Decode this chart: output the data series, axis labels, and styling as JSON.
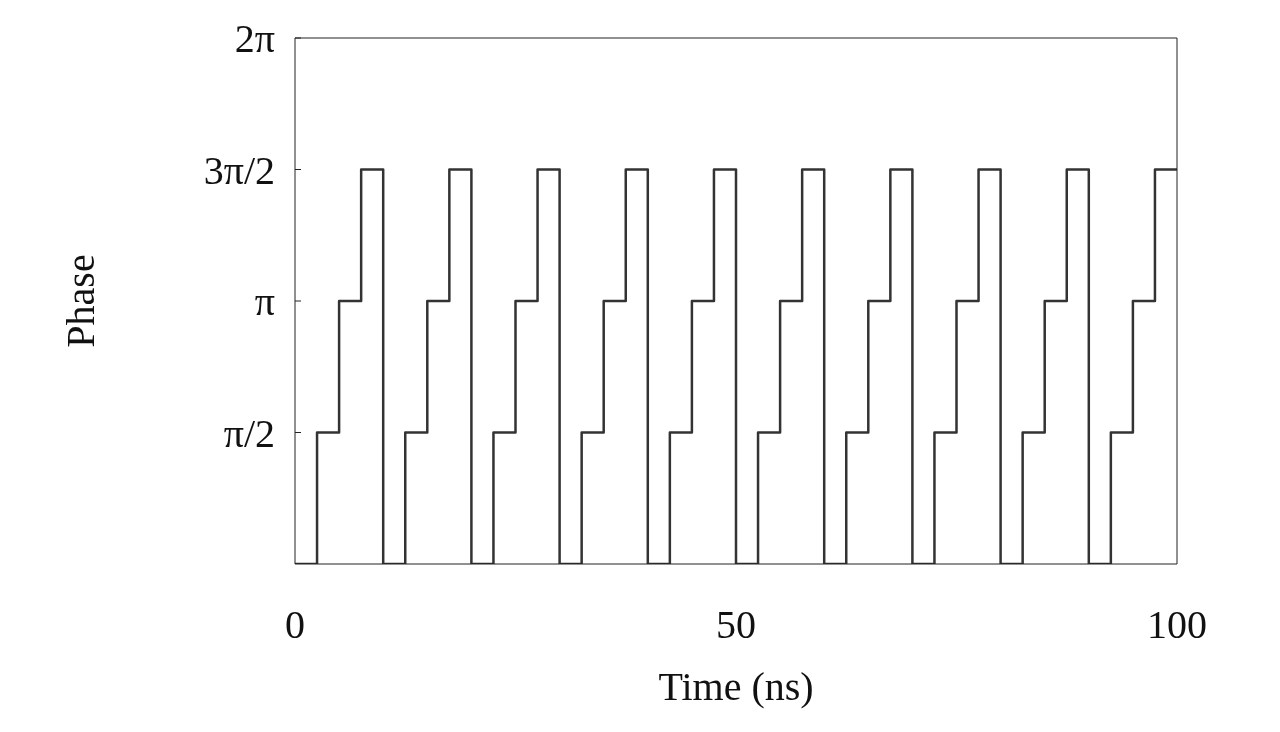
{
  "chart_data": {
    "type": "step",
    "xlabel": "Time (ns)",
    "ylabel": "Phase",
    "x": [
      0,
      2.5,
      5,
      7.5,
      10,
      12.5,
      15,
      17.5,
      20,
      22.5,
      25,
      27.5,
      30,
      32.5,
      35,
      37.5,
      40,
      42.5,
      45,
      47.5,
      50,
      52.5,
      55,
      57.5,
      60,
      62.5,
      65,
      67.5,
      70,
      72.5,
      75,
      77.5,
      80,
      82.5,
      85,
      87.5,
      90,
      92.5,
      95,
      97.5,
      100
    ],
    "series": [
      {
        "color": "#333333",
        "values": [
          0,
          1.57,
          3.14,
          4.71,
          0,
          1.57,
          3.14,
          4.71,
          0,
          1.57,
          3.14,
          4.71,
          0,
          1.57,
          3.14,
          4.71,
          0,
          1.57,
          3.14,
          4.71,
          0,
          1.57,
          3.14,
          4.71,
          0,
          1.57,
          3.14,
          4.71,
          0,
          1.57,
          3.14,
          4.71,
          0,
          1.57,
          3.14,
          4.71,
          0,
          1.57,
          3.14,
          4.71,
          4.71
        ]
      }
    ],
    "xlim": [
      0,
      100
    ],
    "xticks": [
      0,
      50,
      100
    ],
    "ylim": [
      0,
      6.28
    ],
    "yticks": [
      {
        "value": 1.57,
        "label": "π/2"
      },
      {
        "value": 3.14,
        "label": "π"
      },
      {
        "value": 4.71,
        "label": "3π/2"
      },
      {
        "value": 6.28,
        "label": "2π"
      }
    ],
    "grid": false,
    "marker": "none",
    "line_style": "solid"
  }
}
